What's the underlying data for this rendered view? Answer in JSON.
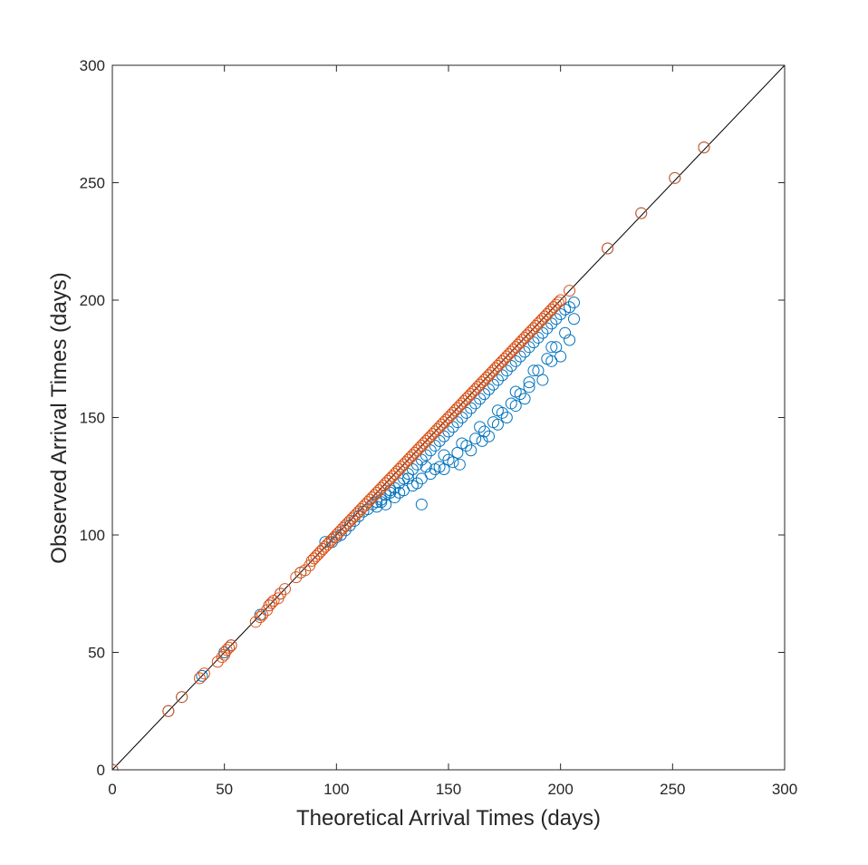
{
  "chart_data": {
    "type": "scatter",
    "title": "",
    "xlabel": "Theoretical Arrival Times (days)",
    "ylabel": "Observed Arrival Times (days)",
    "xlim": [
      0,
      300
    ],
    "ylim": [
      0,
      300
    ],
    "xticks": [
      0,
      50,
      100,
      150,
      200,
      250,
      300
    ],
    "yticks": [
      0,
      50,
      100,
      150,
      200,
      250,
      300
    ],
    "grid": false,
    "legend": "none",
    "reference_line": {
      "x": [
        0,
        300
      ],
      "y": [
        0,
        300
      ],
      "color": "#000000"
    },
    "series": [
      {
        "color": "#0072BD",
        "marker": "open-circle",
        "points": [
          [
            0,
            0
          ],
          [
            25,
            25
          ],
          [
            31,
            31
          ],
          [
            40,
            40
          ],
          [
            50,
            50
          ],
          [
            53,
            53
          ],
          [
            66,
            66
          ],
          [
            70,
            70
          ],
          [
            75,
            75
          ],
          [
            84,
            84
          ],
          [
            95,
            97
          ],
          [
            98,
            97
          ],
          [
            100,
            99
          ],
          [
            102,
            100
          ],
          [
            104,
            102
          ],
          [
            106,
            104
          ],
          [
            108,
            106
          ],
          [
            110,
            108
          ],
          [
            112,
            110
          ],
          [
            114,
            111
          ],
          [
            116,
            113
          ],
          [
            118,
            114
          ],
          [
            120,
            115
          ],
          [
            122,
            117
          ],
          [
            124,
            118
          ],
          [
            126,
            120
          ],
          [
            128,
            122
          ],
          [
            130,
            124
          ],
          [
            132,
            126
          ],
          [
            134,
            128
          ],
          [
            136,
            130
          ],
          [
            138,
            132
          ],
          [
            140,
            134
          ],
          [
            142,
            136
          ],
          [
            144,
            138
          ],
          [
            146,
            140
          ],
          [
            148,
            142
          ],
          [
            150,
            144
          ],
          [
            152,
            146
          ],
          [
            154,
            148
          ],
          [
            156,
            150
          ],
          [
            158,
            152
          ],
          [
            160,
            154
          ],
          [
            162,
            156
          ],
          [
            164,
            158
          ],
          [
            166,
            160
          ],
          [
            168,
            162
          ],
          [
            170,
            164
          ],
          [
            172,
            166
          ],
          [
            174,
            168
          ],
          [
            176,
            170
          ],
          [
            178,
            172
          ],
          [
            180,
            174
          ],
          [
            182,
            176
          ],
          [
            184,
            178
          ],
          [
            186,
            180
          ],
          [
            188,
            182
          ],
          [
            190,
            184
          ],
          [
            192,
            186
          ],
          [
            194,
            188
          ],
          [
            196,
            190
          ],
          [
            198,
            192
          ],
          [
            200,
            194
          ],
          [
            202,
            196
          ],
          [
            204,
            197
          ],
          [
            206,
            199
          ],
          [
            118,
            112
          ],
          [
            122,
            113
          ],
          [
            126,
            116
          ],
          [
            130,
            119
          ],
          [
            134,
            121
          ],
          [
            138,
            124
          ],
          [
            142,
            126
          ],
          [
            146,
            129
          ],
          [
            150,
            132
          ],
          [
            154,
            135
          ],
          [
            158,
            138
          ],
          [
            162,
            141
          ],
          [
            166,
            144
          ],
          [
            170,
            148
          ],
          [
            174,
            152
          ],
          [
            178,
            156
          ],
          [
            182,
            160
          ],
          [
            186,
            165
          ],
          [
            190,
            170
          ],
          [
            194,
            175
          ],
          [
            198,
            180
          ],
          [
            202,
            186
          ],
          [
            206,
            192
          ],
          [
            120,
            114
          ],
          [
            128,
            118
          ],
          [
            136,
            122
          ],
          [
            144,
            128
          ],
          [
            152,
            131
          ],
          [
            160,
            136
          ],
          [
            168,
            142
          ],
          [
            176,
            150
          ],
          [
            184,
            158
          ],
          [
            192,
            166
          ],
          [
            200,
            176
          ],
          [
            204,
            183
          ],
          [
            138,
            113
          ],
          [
            148,
            128
          ],
          [
            155,
            130
          ],
          [
            165,
            140
          ],
          [
            172,
            147
          ],
          [
            180,
            155
          ],
          [
            186,
            163
          ],
          [
            196,
            174
          ],
          [
            124,
            119
          ],
          [
            132,
            124
          ],
          [
            140,
            129
          ],
          [
            148,
            134
          ],
          [
            156,
            139
          ],
          [
            164,
            146
          ],
          [
            172,
            153
          ],
          [
            180,
            161
          ],
          [
            188,
            170
          ],
          [
            196,
            180
          ],
          [
            221,
            222
          ],
          [
            236,
            237
          ],
          [
            251,
            252
          ],
          [
            264,
            265
          ]
        ]
      },
      {
        "color": "#D95319",
        "marker": "open-circle",
        "points": [
          [
            0,
            0
          ],
          [
            25,
            25
          ],
          [
            31,
            31
          ],
          [
            39,
            39
          ],
          [
            41,
            41
          ],
          [
            47,
            46
          ],
          [
            49,
            48
          ],
          [
            50,
            49
          ],
          [
            51,
            51
          ],
          [
            52,
            52
          ],
          [
            53,
            53
          ],
          [
            64,
            63
          ],
          [
            66,
            65
          ],
          [
            67,
            66
          ],
          [
            69,
            68
          ],
          [
            70,
            70
          ],
          [
            71,
            71
          ],
          [
            72,
            72
          ],
          [
            74,
            73
          ],
          [
            75,
            75
          ],
          [
            77,
            77
          ],
          [
            82,
            82
          ],
          [
            84,
            84
          ],
          [
            86,
            85
          ],
          [
            88,
            87
          ],
          [
            89,
            89
          ],
          [
            90,
            90
          ],
          [
            91,
            91
          ],
          [
            92,
            92
          ],
          [
            93,
            93
          ],
          [
            94,
            94
          ],
          [
            95,
            95
          ],
          [
            96,
            96
          ],
          [
            97,
            97
          ],
          [
            98,
            98
          ],
          [
            99,
            99
          ],
          [
            100,
            100
          ],
          [
            101,
            101
          ],
          [
            102,
            102
          ],
          [
            103,
            103
          ],
          [
            104,
            104
          ],
          [
            105,
            105
          ],
          [
            106,
            106
          ],
          [
            107,
            107
          ],
          [
            108,
            108
          ],
          [
            109,
            109
          ],
          [
            110,
            110
          ],
          [
            111,
            111
          ],
          [
            112,
            112
          ],
          [
            113,
            113
          ],
          [
            114,
            114
          ],
          [
            115,
            115
          ],
          [
            116,
            116
          ],
          [
            117,
            117
          ],
          [
            118,
            118
          ],
          [
            119,
            119
          ],
          [
            120,
            120
          ],
          [
            121,
            121
          ],
          [
            122,
            122
          ],
          [
            123,
            123
          ],
          [
            124,
            124
          ],
          [
            125,
            125
          ],
          [
            126,
            126
          ],
          [
            127,
            127
          ],
          [
            128,
            128
          ],
          [
            129,
            129
          ],
          [
            130,
            130
          ],
          [
            131,
            131
          ],
          [
            132,
            132
          ],
          [
            133,
            133
          ],
          [
            134,
            134
          ],
          [
            135,
            135
          ],
          [
            136,
            136
          ],
          [
            137,
            137
          ],
          [
            138,
            138
          ],
          [
            139,
            139
          ],
          [
            140,
            140
          ],
          [
            141,
            141
          ],
          [
            142,
            142
          ],
          [
            143,
            143
          ],
          [
            144,
            144
          ],
          [
            145,
            145
          ],
          [
            146,
            146
          ],
          [
            147,
            147
          ],
          [
            148,
            148
          ],
          [
            149,
            149
          ],
          [
            150,
            150
          ],
          [
            151,
            151
          ],
          [
            152,
            152
          ],
          [
            153,
            153
          ],
          [
            154,
            154
          ],
          [
            155,
            155
          ],
          [
            156,
            156
          ],
          [
            157,
            157
          ],
          [
            158,
            158
          ],
          [
            159,
            159
          ],
          [
            160,
            160
          ],
          [
            161,
            161
          ],
          [
            162,
            162
          ],
          [
            163,
            163
          ],
          [
            164,
            164
          ],
          [
            165,
            165
          ],
          [
            166,
            166
          ],
          [
            167,
            167
          ],
          [
            168,
            168
          ],
          [
            169,
            169
          ],
          [
            170,
            170
          ],
          [
            171,
            171
          ],
          [
            172,
            172
          ],
          [
            173,
            173
          ],
          [
            174,
            174
          ],
          [
            175,
            175
          ],
          [
            176,
            176
          ],
          [
            177,
            177
          ],
          [
            178,
            178
          ],
          [
            179,
            179
          ],
          [
            180,
            180
          ],
          [
            181,
            181
          ],
          [
            182,
            182
          ],
          [
            183,
            183
          ],
          [
            184,
            184
          ],
          [
            185,
            185
          ],
          [
            186,
            186
          ],
          [
            187,
            187
          ],
          [
            188,
            188
          ],
          [
            189,
            189
          ],
          [
            190,
            190
          ],
          [
            191,
            191
          ],
          [
            192,
            192
          ],
          [
            193,
            193
          ],
          [
            194,
            194
          ],
          [
            195,
            195
          ],
          [
            196,
            196
          ],
          [
            197,
            197
          ],
          [
            198,
            198
          ],
          [
            199,
            199
          ],
          [
            200,
            200
          ],
          [
            204,
            204
          ],
          [
            221,
            222
          ],
          [
            236,
            237
          ],
          [
            251,
            252
          ],
          [
            264,
            265
          ]
        ]
      }
    ]
  }
}
